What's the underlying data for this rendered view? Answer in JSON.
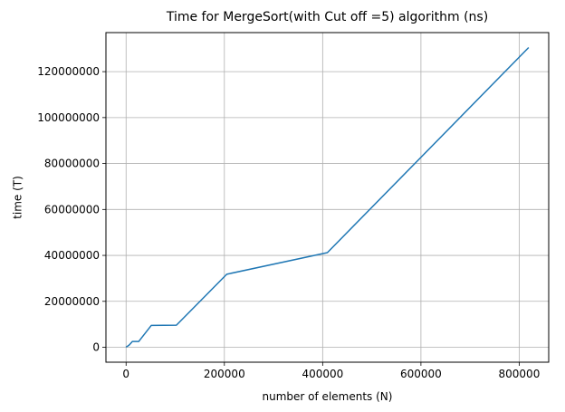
{
  "chart_data": {
    "type": "line",
    "title": "Time for MergeSort(with Cut off =5) algorithm (ns)",
    "xlabel": "number of elements (N)",
    "ylabel": "time (T)",
    "xlim": [
      -41000,
      860000
    ],
    "ylim": [
      -6500000,
      137000000
    ],
    "xticks": [
      0,
      200000,
      400000,
      600000,
      800000
    ],
    "xtick_labels": [
      "0",
      "200000",
      "400000",
      "600000",
      "800000"
    ],
    "yticks": [
      0,
      20000000,
      40000000,
      60000000,
      80000000,
      100000000,
      120000000
    ],
    "ytick_labels": [
      "0",
      "20000000",
      "40000000",
      "60000000",
      "80000000",
      "100000000",
      "120000000"
    ],
    "grid": true,
    "series": [
      {
        "color": "#1f77b4",
        "x": [
          100,
          800,
          3200,
          6400,
          12800,
          25600,
          51200,
          102400,
          204800,
          409600,
          819200
        ],
        "y": [
          0,
          200000,
          500000,
          1000000,
          2500000,
          2500000,
          9500000,
          9600000,
          31800000,
          41200000,
          130500000
        ]
      }
    ]
  }
}
